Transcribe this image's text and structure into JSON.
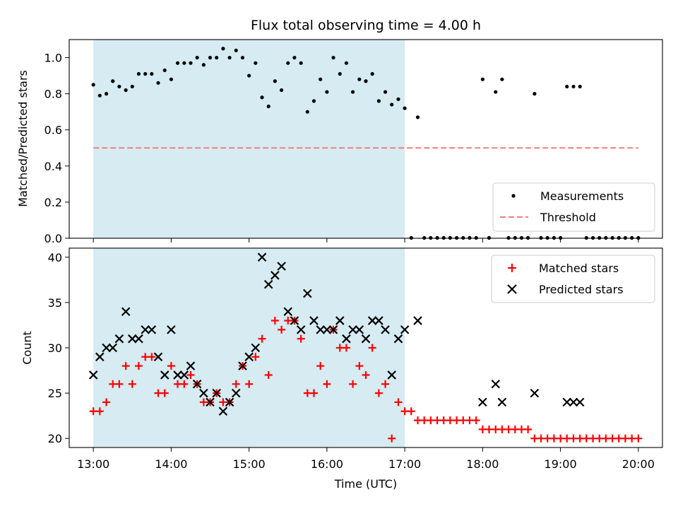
{
  "chart_data": [
    {
      "type": "scatter",
      "title": "Flux total observing time = 4.00 h",
      "xlabel": "",
      "ylabel": "Matched/Predicted stars",
      "xlim": [
        12.69,
        20.31
      ],
      "ylim": [
        0.0,
        1.1
      ],
      "yticks": [
        0.0,
        0.2,
        0.4,
        0.6,
        0.8,
        1.0
      ],
      "ytick_labels": [
        "0.0",
        "0.2",
        "0.4",
        "0.6",
        "0.8",
        "1.0"
      ],
      "observing_window": [
        13.0,
        17.0
      ],
      "legend": {
        "placement": "lower-right",
        "entries": [
          "Measurements",
          "Threshold"
        ]
      },
      "threshold": {
        "name": "Threshold",
        "value": 0.5,
        "x": [
          13.0,
          20.0
        ],
        "color": "#f08080"
      },
      "series": [
        {
          "name": "Measurements",
          "color": "#000000",
          "x": [
            13.0,
            13.083,
            13.167,
            13.25,
            13.333,
            13.417,
            13.5,
            13.583,
            13.667,
            13.75,
            13.833,
            13.917,
            14.0,
            14.083,
            14.167,
            14.25,
            14.333,
            14.417,
            14.5,
            14.583,
            14.667,
            14.75,
            14.833,
            14.917,
            15.0,
            15.083,
            15.167,
            15.25,
            15.333,
            15.417,
            15.5,
            15.583,
            15.667,
            15.75,
            15.833,
            15.917,
            16.0,
            16.083,
            16.167,
            16.25,
            16.333,
            16.417,
            16.5,
            16.583,
            16.667,
            16.75,
            16.833,
            16.917,
            17.0,
            17.167,
            17.083,
            17.25,
            17.333,
            17.417,
            17.5,
            17.583,
            17.667,
            17.75,
            17.833,
            17.917,
            18.0,
            18.083,
            18.167,
            18.25,
            18.333,
            18.417,
            18.5,
            18.583,
            18.667,
            18.75,
            18.833,
            18.917,
            19.0,
            19.083,
            19.167,
            19.25,
            19.333,
            19.417,
            19.5,
            19.583,
            19.667,
            19.75,
            19.833,
            19.917,
            20.0
          ],
          "y": [
            0.85,
            0.79,
            0.8,
            0.87,
            0.84,
            0.82,
            0.84,
            0.91,
            0.91,
            0.91,
            0.86,
            0.93,
            0.88,
            0.97,
            0.97,
            0.97,
            1.0,
            0.96,
            1.0,
            1.0,
            1.05,
            1.0,
            1.04,
            1.0,
            0.9,
            0.97,
            0.78,
            0.73,
            0.87,
            0.82,
            0.97,
            1.0,
            0.97,
            0.7,
            0.76,
            0.88,
            0.81,
            1.0,
            0.91,
            0.97,
            0.81,
            0.88,
            0.87,
            0.91,
            0.76,
            0.81,
            0.74,
            0.77,
            0.72,
            0.67,
            0.0,
            0.0,
            0.0,
            0.0,
            0.0,
            0.0,
            0.0,
            0.0,
            0.0,
            0.0,
            0.88,
            0.0,
            0.81,
            0.88,
            0.0,
            0.0,
            0.0,
            0.0,
            0.8,
            0.0,
            0.0,
            0.0,
            0.0,
            0.84,
            0.84,
            0.84,
            0.0,
            0.0,
            0.0,
            0.0,
            0.0,
            0.0,
            0.0,
            0.0,
            0.0
          ]
        }
      ]
    },
    {
      "type": "scatter",
      "title": "",
      "xlabel": "Time (UTC)",
      "ylabel": "Count",
      "xlim": [
        12.69,
        20.31
      ],
      "ylim": [
        19.0,
        41.0
      ],
      "yticks": [
        20,
        25,
        30,
        35,
        40
      ],
      "ytick_labels": [
        "20",
        "25",
        "30",
        "35",
        "40"
      ],
      "xticks": [
        13,
        14,
        15,
        16,
        17,
        18,
        19,
        20
      ],
      "xtick_labels": [
        "13:00",
        "14:00",
        "15:00",
        "16:00",
        "17:00",
        "18:00",
        "19:00",
        "20:00"
      ],
      "observing_window": [
        13.0,
        17.0
      ],
      "legend": {
        "placement": "upper-right",
        "entries": [
          "Matched stars",
          "Predicted stars"
        ]
      },
      "series": [
        {
          "name": "Matched stars",
          "marker": "plus",
          "color": "#ff0000",
          "x": [
            13.0,
            13.083,
            13.167,
            13.25,
            13.333,
            13.417,
            13.5,
            13.583,
            13.667,
            13.75,
            13.833,
            13.917,
            14.0,
            14.083,
            14.167,
            14.25,
            14.333,
            14.417,
            14.5,
            14.583,
            14.667,
            14.75,
            14.833,
            14.917,
            15.0,
            15.083,
            15.167,
            15.25,
            15.333,
            15.417,
            15.5,
            15.583,
            15.667,
            15.75,
            15.833,
            15.917,
            16.0,
            16.083,
            16.167,
            16.25,
            16.333,
            16.417,
            16.5,
            16.583,
            16.667,
            16.75,
            16.833,
            16.917,
            17.0,
            17.083,
            17.167,
            17.25,
            17.333,
            17.417,
            17.5,
            17.583,
            17.667,
            17.75,
            17.833,
            17.917,
            18.0,
            18.083,
            18.167,
            18.25,
            18.333,
            18.417,
            18.5,
            18.583,
            18.667,
            18.75,
            18.833,
            18.917,
            19.0,
            19.083,
            19.167,
            19.25,
            19.333,
            19.417,
            19.5,
            19.583,
            19.667,
            19.75,
            19.833,
            19.917,
            20.0
          ],
          "y": [
            23,
            23,
            24,
            26,
            26,
            28,
            26,
            28,
            29,
            29,
            25,
            25,
            28,
            26,
            26,
            27,
            26,
            24,
            24,
            25,
            24,
            24,
            26,
            28,
            26,
            29,
            31,
            27,
            33,
            32,
            33,
            33,
            31,
            25,
            25,
            28,
            26,
            32,
            30,
            30,
            26,
            28,
            27,
            30,
            25,
            26,
            20,
            24,
            23,
            23,
            22,
            22,
            22,
            22,
            22,
            22,
            22,
            22,
            22,
            22,
            21,
            21,
            21,
            21,
            21,
            21,
            21,
            21,
            20,
            20,
            20,
            20,
            20,
            20,
            20,
            20,
            20,
            20,
            20,
            20,
            20,
            20,
            20,
            20,
            20
          ]
        },
        {
          "name": "Predicted stars",
          "marker": "x",
          "color": "#000000",
          "x": [
            13.0,
            13.083,
            13.167,
            13.25,
            13.333,
            13.417,
            13.5,
            13.583,
            13.667,
            13.75,
            13.833,
            13.917,
            14.0,
            14.083,
            14.167,
            14.25,
            14.333,
            14.417,
            14.5,
            14.583,
            14.667,
            14.75,
            14.833,
            14.917,
            15.0,
            15.083,
            15.167,
            15.25,
            15.333,
            15.417,
            15.5,
            15.583,
            15.667,
            15.75,
            15.833,
            15.917,
            16.0,
            16.083,
            16.167,
            16.25,
            16.333,
            16.417,
            16.5,
            16.583,
            16.667,
            16.75,
            16.833,
            16.917,
            17.0,
            17.167,
            18.0,
            18.167,
            18.25,
            18.667,
            19.083,
            19.167,
            19.25
          ],
          "y": [
            27,
            29,
            30,
            30,
            31,
            34,
            31,
            31,
            32,
            32,
            29,
            27,
            32,
            27,
            27,
            28,
            26,
            25,
            24,
            25,
            23,
            24,
            25,
            28,
            29,
            30,
            40,
            37,
            38,
            39,
            34,
            33,
            32,
            36,
            33,
            32,
            32,
            32,
            33,
            31,
            32,
            32,
            31,
            33,
            33,
            32,
            27,
            31,
            32,
            33,
            24,
            26,
            24,
            25,
            24,
            24,
            24
          ]
        }
      ]
    }
  ]
}
